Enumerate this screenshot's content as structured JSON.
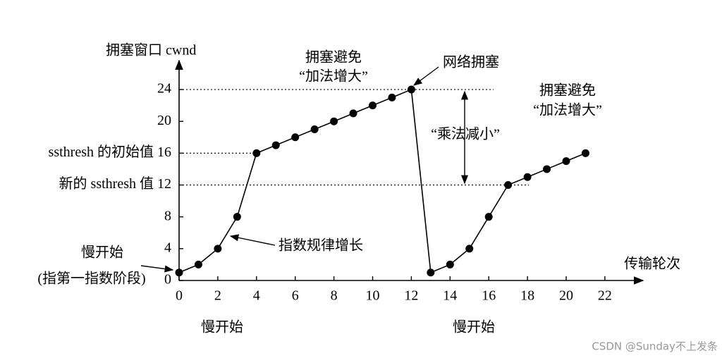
{
  "chart_data": {
    "type": "line",
    "y_label": "拥塞窗口 cwnd",
    "x_label": "传输轮次",
    "x": [
      0,
      1,
      2,
      3,
      4,
      5,
      6,
      7,
      8,
      9,
      10,
      11,
      12,
      13,
      14,
      15,
      16,
      17,
      18,
      19,
      20,
      21
    ],
    "values": [
      1,
      2,
      4,
      8,
      16,
      17,
      18,
      19,
      20,
      21,
      22,
      23,
      24,
      1,
      2,
      4,
      8,
      12,
      13,
      14,
      15,
      16
    ],
    "color": "#000000",
    "xlim": [
      0,
      24
    ],
    "ylim": [
      0,
      27.5
    ],
    "xticks": [
      0,
      2,
      4,
      6,
      8,
      10,
      12,
      14,
      16,
      18,
      20,
      22
    ],
    "yticks": [
      0,
      4,
      8,
      {
        "value": 12,
        "label": "新的 ssthresh 值 12"
      },
      {
        "value": 16,
        "label": "ssthresh 的初始值 16"
      },
      20,
      24
    ],
    "annotations": [
      "拥塞避免",
      "“加法增大”",
      "网络拥塞",
      "“乘法减小”",
      "拥塞避免",
      "“加法增大”",
      "指数规律增长",
      "慢开始",
      "(指第一指数阶段)",
      "慢开始",
      "慢开始"
    ]
  },
  "watermark": "CSDN @Sunday不上发条"
}
